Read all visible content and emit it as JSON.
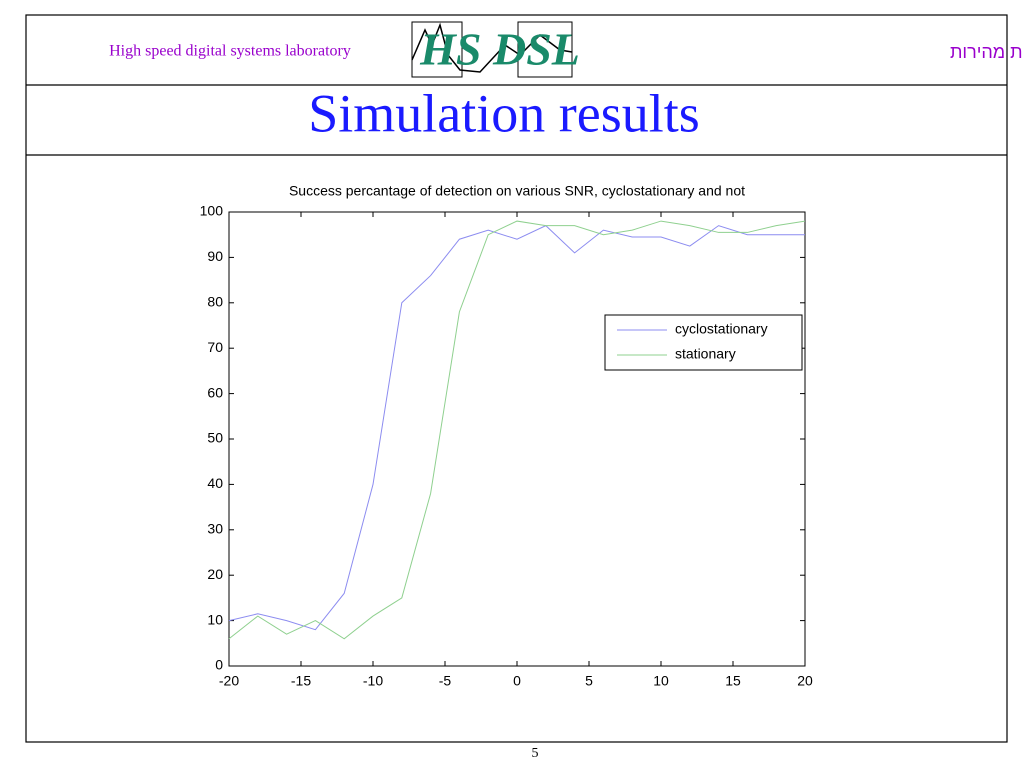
{
  "header": {
    "left": "High speed digital systems laboratory",
    "logo": "HS DSL",
    "right": "המעבדה למערכות ספרתיות מהירות"
  },
  "slide_title": "Simulation results",
  "page_number": "5",
  "chart_data": {
    "type": "line",
    "title": "Success percantage of detection on various SNR, cyclostationary and not",
    "x": [
      -20,
      -18,
      -16,
      -14,
      -12,
      -10,
      -8,
      -6,
      -4,
      -2,
      0,
      2,
      4,
      6,
      8,
      10,
      12,
      14,
      16,
      18,
      20
    ],
    "series": [
      {
        "name": "cyclostationary",
        "color": "#8c8cf0",
        "values": [
          10,
          11.5,
          10,
          8,
          16,
          40,
          80,
          86,
          94,
          96,
          94,
          97,
          91,
          96,
          94.5,
          94.5,
          92.5,
          97,
          95,
          95,
          95
        ]
      },
      {
        "name": "stationary",
        "color": "#8fd08f",
        "values": [
          6,
          11,
          7,
          10,
          6,
          11,
          15,
          38,
          78,
          95,
          98,
          97,
          97,
          95,
          96,
          98,
          97,
          95.5,
          95.5,
          97,
          98
        ]
      }
    ],
    "xlim": [
      -20,
      20
    ],
    "xticks": [
      -20,
      -15,
      -10,
      -5,
      0,
      5,
      10,
      15,
      20
    ],
    "ylim": [
      0,
      100
    ],
    "yticks": [
      0,
      10,
      20,
      30,
      40,
      50,
      60,
      70,
      80,
      90,
      100
    ],
    "legend": "northeast"
  }
}
